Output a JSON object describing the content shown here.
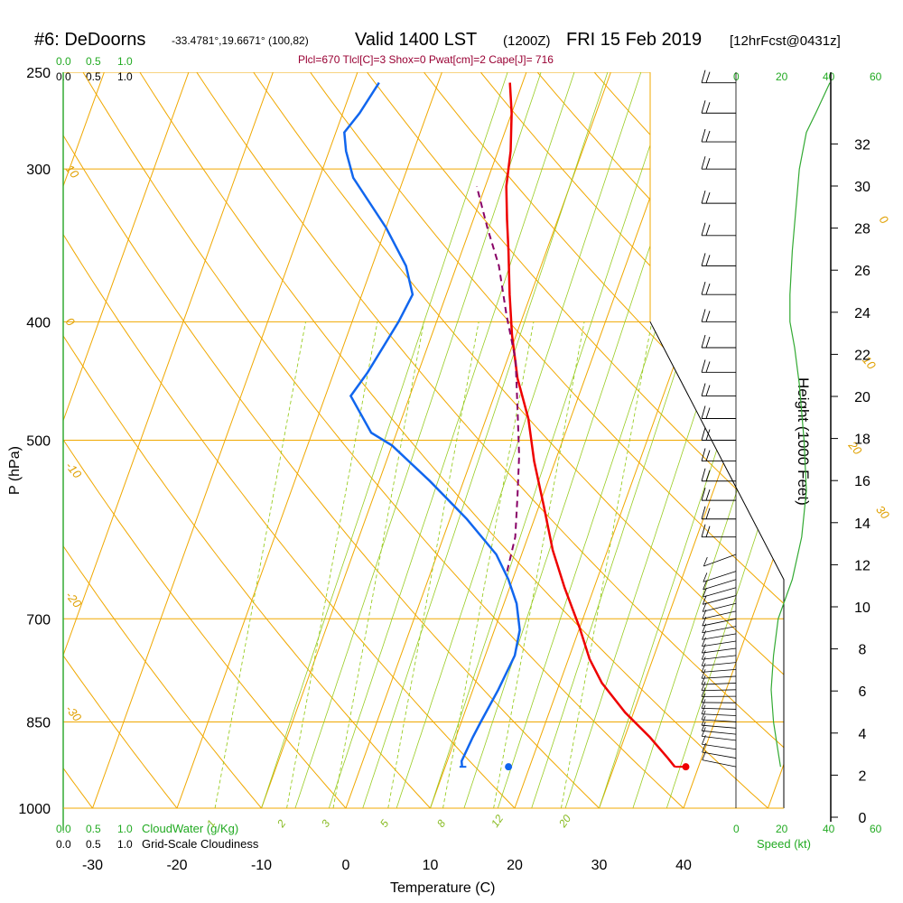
{
  "header": {
    "station": "#6: DeDoorns",
    "coords": "-33.4781°,19.6671° (100,82)",
    "valid": "Valid 1400 LST",
    "zulu": "(1200Z)",
    "date": "FRI 15 Feb 2019",
    "forecast": "[12hrFcst@0431z]",
    "params": "Plcl=670 Tlcl[C]=3 Shox=0 Pwat[cm]=2 Cape[J]= 716"
  },
  "labels": {
    "cloud_scale_green": [
      "0.0",
      "0.5",
      "1.0"
    ],
    "cloud_scale_black": [
      "0.0",
      "0.5",
      "1.0"
    ],
    "cloud_water": "CloudWater (g/Kg)",
    "cloudiness": "Grid-Scale Cloudiness",
    "speed_ticks": [
      "0",
      "20",
      "40",
      "60"
    ],
    "speed_label": "Speed (kt)",
    "height_label": "Height (1000 Feet)"
  },
  "colors": {
    "isotherm": "#f0a800",
    "dry_adiabat": "#f0a800",
    "moist_adiabat": "#99cc22",
    "mixing_ratio": "#99cc22",
    "temperature": "#ee0000",
    "dewpoint": "#1166ee",
    "parcel": "#880066",
    "wind_speed": "#33aa33"
  },
  "chart_data": {
    "type": "line",
    "title": "#6: DeDoorns -33.4781°,19.6671° (100,82) Valid 1400 LST (1200Z) FRI 15 Feb 2019 [12hrFcst@0431z]",
    "xlabel": "Temperature (C)",
    "ylabel": "P (hPa)",
    "y2label": "Height (1000 Feet)",
    "x_ticks": [
      -30,
      -20,
      -10,
      0,
      10,
      20,
      30,
      40
    ],
    "y_ticks": [
      250,
      300,
      400,
      500,
      700,
      850,
      1000
    ],
    "height_ticks": [
      0,
      2,
      4,
      6,
      8,
      10,
      12,
      14,
      16,
      18,
      20,
      22,
      24,
      26,
      28,
      30,
      32
    ],
    "isotherm_labels": [
      {
        "text": "10",
        "ref": "300",
        "x": -34,
        "y": 300
      },
      {
        "text": "0",
        "ref": "400",
        "x": -34,
        "y": 400
      },
      {
        "text": "-10",
        "ref": "500",
        "x": -34,
        "y": 525
      },
      {
        "text": "-20",
        "ref": "700",
        "x": -34,
        "y": 670
      },
      {
        "text": "-30",
        "ref": "850",
        "x": -34,
        "y": 830
      },
      {
        "text": "0",
        "ref": "top",
        "x": 38,
        "y": 330
      },
      {
        "text": "10",
        "ref": "top",
        "x": 42,
        "y": 430
      },
      {
        "text": "20",
        "ref": "top",
        "x": 44,
        "y": 505
      },
      {
        "text": "30",
        "ref": "top",
        "x": 50,
        "y": 570
      }
    ],
    "mixing_ratio_labels": [
      "1",
      "2",
      "3",
      "5",
      "8",
      "12",
      "20"
    ],
    "series": [
      {
        "name": "Temperature",
        "values": [
          [
            37.2,
            925
          ],
          [
            36,
            910
          ],
          [
            33,
            875
          ],
          [
            29,
            835
          ],
          [
            25,
            790
          ],
          [
            22.5,
            755
          ],
          [
            20,
            712
          ],
          [
            16.5,
            660
          ],
          [
            13.5,
            615
          ],
          [
            10.5,
            565
          ],
          [
            7.5,
            520
          ],
          [
            5,
            480
          ],
          [
            2,
            445
          ],
          [
            -0.5,
            410
          ],
          [
            -2.5,
            380
          ],
          [
            -4.5,
            350
          ],
          [
            -6,
            330
          ],
          [
            -7.5,
            310
          ],
          [
            -8.5,
            290
          ],
          [
            -10,
            270
          ],
          [
            -11.5,
            255
          ]
        ]
      },
      {
        "name": "Dew point",
        "values": [
          [
            12,
            925
          ],
          [
            11.7,
            915
          ],
          [
            12,
            875
          ],
          [
            12.3,
            850
          ],
          [
            13,
            800
          ],
          [
            13.5,
            750
          ],
          [
            13,
            715
          ],
          [
            11.5,
            680
          ],
          [
            9.5,
            650
          ],
          [
            7,
            620
          ],
          [
            2,
            580
          ],
          [
            -4,
            540
          ],
          [
            -10,
            505
          ],
          [
            -13,
            493
          ],
          [
            -17,
            460
          ],
          [
            -16,
            440
          ],
          [
            -14.5,
            400
          ],
          [
            -14,
            380
          ],
          [
            -16,
            360
          ],
          [
            -20,
            335
          ],
          [
            -26,
            305
          ],
          [
            -28,
            290
          ],
          [
            -29,
            280
          ],
          [
            -28,
            270
          ],
          [
            -27,
            255
          ]
        ]
      },
      {
        "name": "Parcel",
        "values": [
          [
            9,
            640
          ],
          [
            8.5,
            600
          ],
          [
            7,
            555
          ],
          [
            5.5,
            515
          ],
          [
            3.5,
            475
          ],
          [
            1,
            430
          ],
          [
            -2,
            395
          ],
          [
            -5,
            360
          ],
          [
            -8,
            335
          ],
          [
            -11,
            310
          ]
        ]
      }
    ],
    "points": [
      {
        "name": "surface-temperature",
        "t": 38.5,
        "p": 925
      },
      {
        "name": "surface-dewpoint",
        "t": 17.5,
        "p": 925
      }
    ],
    "wind_speed_profile": [
      [
        19,
        925
      ],
      [
        18,
        900
      ],
      [
        16,
        850
      ],
      [
        15,
        800
      ],
      [
        16,
        750
      ],
      [
        18,
        700
      ],
      [
        24,
        650
      ],
      [
        28,
        600
      ],
      [
        30,
        550
      ],
      [
        29,
        500
      ],
      [
        27,
        450
      ],
      [
        25,
        420
      ],
      [
        23,
        400
      ],
      [
        23,
        380
      ],
      [
        24,
        350
      ],
      [
        27,
        300
      ],
      [
        30,
        280
      ],
      [
        34,
        270
      ],
      [
        40,
        255
      ]
    ],
    "wind_barbs_levels": [
      925,
      910,
      895,
      880,
      870,
      860,
      850,
      840,
      830,
      820,
      810,
      800,
      790,
      780,
      770,
      760,
      750,
      740,
      730,
      720,
      710,
      700,
      690,
      680,
      670,
      660,
      650,
      640,
      620,
      600,
      580,
      560,
      540,
      520,
      500,
      480,
      460,
      440,
      420,
      400,
      380,
      360,
      340,
      320,
      300,
      285,
      270,
      255
    ]
  }
}
